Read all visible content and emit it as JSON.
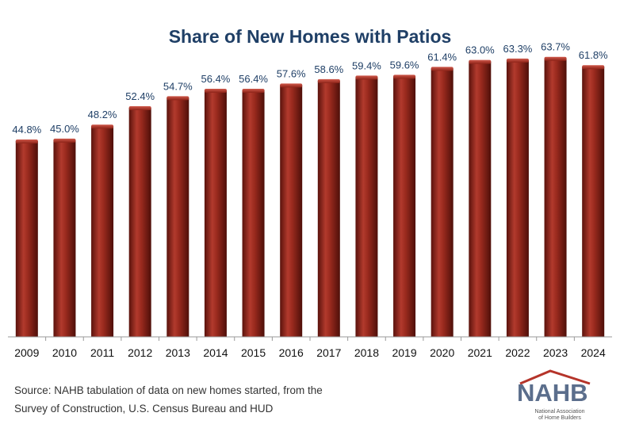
{
  "chart_data": {
    "type": "bar",
    "title": "Share of New Homes with Patios",
    "categories": [
      "2009",
      "2010",
      "2011",
      "2012",
      "2013",
      "2014",
      "2015",
      "2016",
      "2017",
      "2018",
      "2019",
      "2020",
      "2021",
      "2022",
      "2023",
      "2024"
    ],
    "values": [
      44.8,
      45.0,
      48.2,
      52.4,
      54.7,
      56.4,
      56.4,
      57.6,
      58.6,
      59.4,
      59.6,
      61.4,
      63.0,
      63.3,
      63.7,
      61.8
    ],
    "value_labels": [
      "44.8%",
      "45.0%",
      "48.2%",
      "52.4%",
      "54.7%",
      "56.4%",
      "56.4%",
      "57.6%",
      "58.6%",
      "59.4%",
      "59.6%",
      "61.4%",
      "63.0%",
      "63.3%",
      "63.7%",
      "61.8%"
    ],
    "xlabel": "",
    "ylabel": "",
    "ylim": [
      0,
      68
    ],
    "grid": false,
    "legend": "none",
    "bar_color": "#8e2318",
    "bar_highlight": "#c0473a",
    "bar_shadow": "#5a120c"
  },
  "source_line_1": "Source: NAHB tabulation of data on new homes started, from the",
  "source_line_2": "Survey of Construction, U.S. Census Bureau and HUD",
  "logo": {
    "word": "NAHB",
    "subtitle_1": "National Association",
    "subtitle_2": "of Home Builders"
  }
}
